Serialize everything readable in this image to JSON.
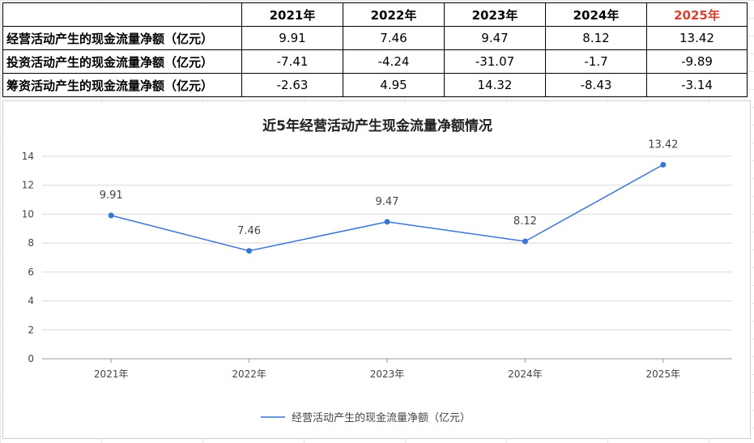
{
  "table": {
    "headers": [
      "",
      "2021年",
      "2022年",
      "2023年",
      "2024年",
      "2025年"
    ],
    "rows": [
      {
        "label": "经营活动产生的现金流量净额（亿元）",
        "values": [
          "9.91",
          "7.46",
          "9.47",
          "8.12",
          "13.42"
        ]
      },
      {
        "label": "投资活动产生的现金流量净额（亿元）",
        "values": [
          "-7.41",
          "-4.24",
          "-31.07",
          "-1.7",
          "-9.89"
        ]
      },
      {
        "label": "筹资活动产生的现金流量净额（亿元）",
        "values": [
          "-2.63",
          "4.95",
          "14.32",
          "-8.43",
          "-3.14"
        ]
      }
    ],
    "highlight_color": "#d9402e"
  },
  "chart_data": {
    "type": "line",
    "title": "近5年经营活动产生现金流量净额情况",
    "categories": [
      "2021年",
      "2022年",
      "2023年",
      "2024年",
      "2025年"
    ],
    "series": [
      {
        "name": "经营活动产生的现金流量净额（亿元）",
        "values": [
          9.91,
          7.46,
          9.47,
          8.12,
          13.42
        ],
        "color": "#3a75d1"
      }
    ],
    "data_labels": [
      "9.91",
      "7.46",
      "9.47",
      "8.12",
      "13.42"
    ],
    "ylim": [
      0,
      14
    ],
    "yticks": [
      0,
      2,
      4,
      6,
      8,
      10,
      12,
      14
    ],
    "ytick_labels": [
      "0",
      "2",
      "4",
      "6",
      "8",
      "10",
      "12",
      "14"
    ],
    "grid": true,
    "legend": "bottom"
  }
}
